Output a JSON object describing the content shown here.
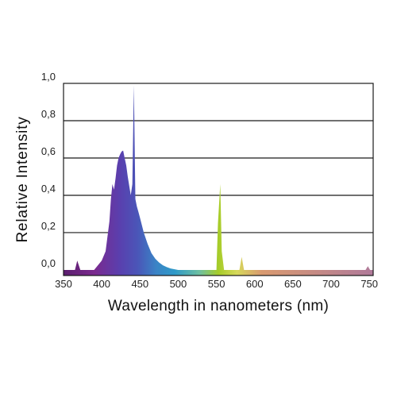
{
  "chart_data": {
    "type": "area",
    "title": "",
    "xlabel": "Wavelength in nanometers (nm)",
    "ylabel": "Relative Intensity",
    "xlim": [
      350,
      755
    ],
    "ylim": [
      -0.03,
      1.0
    ],
    "x_ticks": [
      "350",
      "400",
      "450",
      "500",
      "550",
      "600",
      "650",
      "700",
      "750"
    ],
    "y_ticks": [
      "0,0",
      "0,2",
      "0,4",
      "0,6",
      "0,8",
      "1,0"
    ],
    "grid": "horizontal",
    "legend": "none",
    "series": [
      {
        "x": [
          350,
          365,
          368,
          372,
          380,
          390,
          400,
          405,
          410,
          412,
          414,
          416,
          418,
          420,
          422,
          424,
          426,
          428,
          430,
          432,
          434,
          436,
          438,
          440,
          442,
          444,
          446,
          448,
          450,
          455,
          460,
          465,
          470,
          475,
          480,
          485,
          490,
          500,
          550,
          552,
          555,
          557,
          560,
          580,
          583,
          586,
          590,
          600,
          700,
          745,
          748,
          751,
          755
        ],
        "y": [
          0,
          0,
          0.05,
          0,
          0,
          0,
          0.05,
          0.1,
          0.26,
          0.38,
          0.46,
          0.43,
          0.49,
          0.56,
          0.6,
          0.62,
          0.635,
          0.64,
          0.6,
          0.56,
          0.5,
          0.45,
          0.4,
          0.46,
          0.99,
          0.38,
          0.34,
          0.31,
          0.28,
          0.2,
          0.14,
          0.09,
          0.06,
          0.04,
          0.025,
          0.015,
          0.008,
          0,
          0,
          0.25,
          0.46,
          0.1,
          0,
          0,
          0.07,
          0,
          0,
          0,
          0,
          0,
          0.02,
          0,
          0
        ]
      }
    ]
  },
  "colors": {
    "violet": "#7a2a8e",
    "blue": "#4a56b8",
    "cyan": "#2f9ac8",
    "green_line": "#a6cc28",
    "yellow_line": "#d6d85a",
    "grid": "#1a1a1a"
  }
}
